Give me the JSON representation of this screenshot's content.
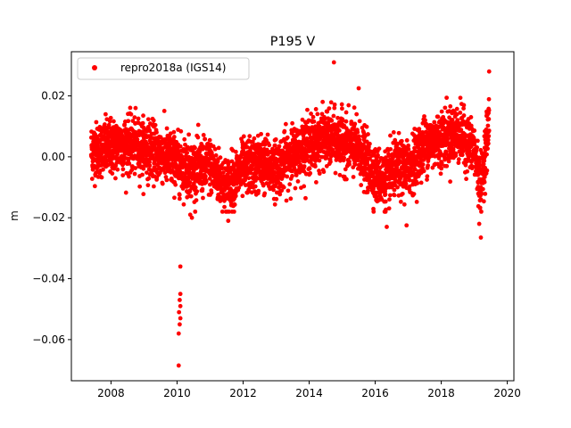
{
  "chart_data": {
    "type": "scatter",
    "title": "P195 V",
    "xlabel": "",
    "ylabel": "m",
    "xlim": [
      2006.8,
      2020.2
    ],
    "ylim": [
      -0.0735,
      0.0345
    ],
    "xticks": [
      2008,
      2010,
      2012,
      2014,
      2016,
      2018,
      2020
    ],
    "xtick_labels": [
      "2008",
      "2010",
      "2012",
      "2014",
      "2016",
      "2018",
      "2020"
    ],
    "yticks": [
      -0.06,
      -0.04,
      -0.02,
      0.0,
      0.02
    ],
    "ytick_labels": [
      "−0.06",
      "−0.04",
      "−0.02",
      "0.00",
      "0.02"
    ],
    "grid": false,
    "legend_position": "upper-left",
    "marker_color": "#ff0000",
    "series": [
      {
        "name": "repro2018a (IGS14)",
        "trend": {
          "x": [
            2007.4,
            2008.0,
            2008.5,
            2009.0,
            2009.5,
            2010.0,
            2010.5,
            2011.0,
            2011.5,
            2012.0,
            2012.5,
            2013.0,
            2013.5,
            2014.0,
            2014.5,
            2015.0,
            2015.5,
            2016.0,
            2016.3,
            2016.6,
            2017.0,
            2017.5,
            2018.0,
            2018.5,
            2019.0,
            2019.2,
            2019.45
          ],
          "y": [
            0.002,
            0.003,
            0.004,
            0.003,
            0.001,
            -0.002,
            -0.004,
            -0.003,
            -0.01,
            -0.004,
            -0.002,
            -0.004,
            0.001,
            0.004,
            0.006,
            0.005,
            0.002,
            -0.006,
            -0.008,
            -0.004,
            -0.004,
            0.004,
            0.006,
            0.008,
            0.002,
            -0.01,
            0.012
          ],
          "noise_sd": 0.0045,
          "samples": 4000
        },
        "outliers": [
          {
            "x": 2010.05,
            "y": -0.0685
          },
          {
            "x": 2010.1,
            "y": -0.036
          },
          {
            "x": 2010.1,
            "y": -0.045
          },
          {
            "x": 2010.08,
            "y": -0.047
          },
          {
            "x": 2010.1,
            "y": -0.049
          },
          {
            "x": 2010.06,
            "y": -0.051
          },
          {
            "x": 2010.1,
            "y": -0.053
          },
          {
            "x": 2010.08,
            "y": -0.055
          },
          {
            "x": 2010.05,
            "y": -0.058
          },
          {
            "x": 2010.45,
            "y": -0.02
          },
          {
            "x": 2010.4,
            "y": -0.019
          },
          {
            "x": 2014.75,
            "y": 0.031
          },
          {
            "x": 2015.5,
            "y": 0.0225
          },
          {
            "x": 2019.45,
            "y": 0.028
          },
          {
            "x": 2019.2,
            "y": -0.0265
          },
          {
            "x": 2019.15,
            "y": -0.022
          },
          {
            "x": 2016.35,
            "y": -0.023
          },
          {
            "x": 2016.95,
            "y": -0.0225
          },
          {
            "x": 2011.55,
            "y": -0.021
          }
        ]
      }
    ]
  }
}
